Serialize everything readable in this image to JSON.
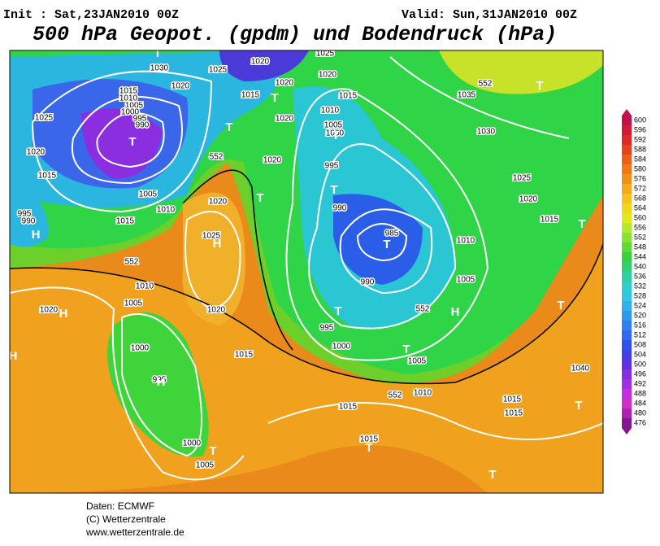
{
  "header": {
    "init": "Init : Sat,23JAN2010 00Z",
    "valid": "Valid: Sun,31JAN2010 00Z",
    "title": "500 hPa Geopot. (gpdm) und Bodendruck (hPa)"
  },
  "colorbar": {
    "labels": [
      "600",
      "596",
      "592",
      "588",
      "584",
      "580",
      "576",
      "572",
      "568",
      "564",
      "560",
      "556",
      "552",
      "548",
      "544",
      "540",
      "536",
      "532",
      "528",
      "524",
      "520",
      "516",
      "512",
      "508",
      "504",
      "500",
      "496",
      "492",
      "488",
      "484",
      "480",
      "476"
    ]
  },
  "map": {
    "labels": [
      "1030",
      "1020",
      "1025",
      "1020",
      "1020",
      "1020",
      "1025",
      "1015",
      "1010",
      "1005",
      "1000",
      "995",
      "990",
      "1025",
      "1020",
      "1015",
      "1005",
      "1010",
      "1015",
      "995",
      "990",
      "1020",
      "1025",
      "1015",
      "1020",
      "1015",
      "1010",
      "1005",
      "1000",
      "1020",
      "995",
      "990",
      "985",
      "990",
      "995",
      "1000",
      "1005",
      "1010",
      "1005",
      "1010",
      "1005",
      "1020",
      "1020",
      "1000",
      "995",
      "1000",
      "1005",
      "1015",
      "1015",
      "1015",
      "1015",
      "1015",
      "1040",
      "1035",
      "1030",
      "1025",
      "1020",
      "1015",
      "1010",
      "552",
      "552",
      "552",
      "552",
      "552",
      "T",
      "T",
      "T",
      "T",
      "T",
      "T",
      "T",
      "T",
      "T",
      "T",
      "T",
      "T",
      "T",
      "T",
      "T",
      "H",
      "H",
      "H",
      "H",
      "H",
      "T",
      "H",
      "T"
    ]
  },
  "footer": {
    "lines": [
      "Daten: ECMWF",
      "(C) Wetterzentrale",
      "www.wetterzentrale.de"
    ]
  }
}
